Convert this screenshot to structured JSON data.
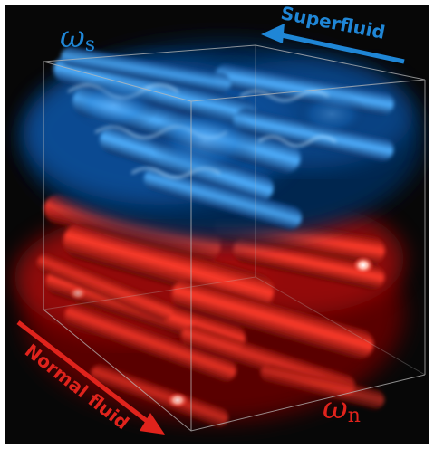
{
  "colors": {
    "background": "#070707",
    "superfluid": "#1f86d6",
    "normal_fluid": "#e0231c",
    "box_edges": "#b9b9b9"
  },
  "labels": {
    "omega_s_symbol": "ω",
    "omega_s_subscript": "s",
    "omega_n_symbol": "ω",
    "omega_n_subscript": "n",
    "superfluid_arrow": "Superfluid",
    "normal_fluid_arrow": "Normal fluid"
  },
  "icons": {
    "superfluid_arrow": "arrow-left-icon",
    "normal_fluid_arrow": "arrow-down-right-icon"
  }
}
